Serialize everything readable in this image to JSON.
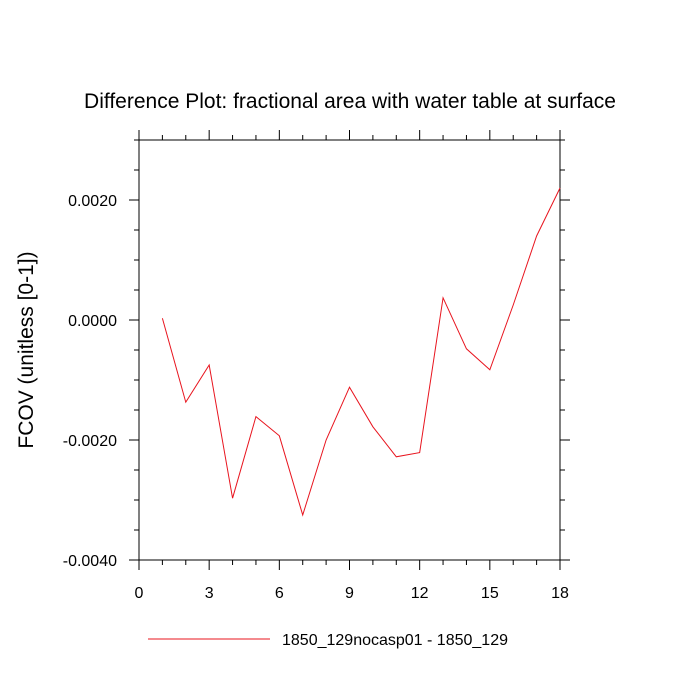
{
  "chart_data": {
    "type": "line",
    "title": "Difference Plot: fractional area with water table at surface",
    "ylabel": "FCOV  (unitless [0-1])",
    "xlabel": "",
    "xlim": [
      0,
      18
    ],
    "ylim": [
      -0.004,
      0.003
    ],
    "x_ticks": [
      0,
      3,
      6,
      9,
      12,
      15,
      18
    ],
    "x_tick_labels": [
      "0",
      "3",
      "6",
      "9",
      "12",
      "15",
      "18"
    ],
    "y_ticks": [
      -0.004,
      -0.002,
      0.0,
      0.002
    ],
    "y_tick_labels": [
      "-0.0040",
      "-0.0020",
      "0.0000",
      "0.0020"
    ],
    "grid": false,
    "legend_position": "bottom",
    "series": [
      {
        "name": "1850_129nocasp01 - 1850_129",
        "color": "#e8141e",
        "x": [
          1,
          2,
          3,
          4,
          5,
          6,
          7,
          8,
          9,
          10,
          11,
          12,
          13,
          14,
          15,
          16,
          17,
          18
        ],
        "values": [
          3e-05,
          -0.00137,
          -0.00075,
          -0.00297,
          -0.00161,
          -0.00193,
          -0.00325,
          -0.002,
          -0.00112,
          -0.00178,
          -0.00228,
          -0.00221,
          0.00037,
          -0.00048,
          -0.00083,
          0.00025,
          0.0014,
          0.0022
        ]
      }
    ]
  }
}
